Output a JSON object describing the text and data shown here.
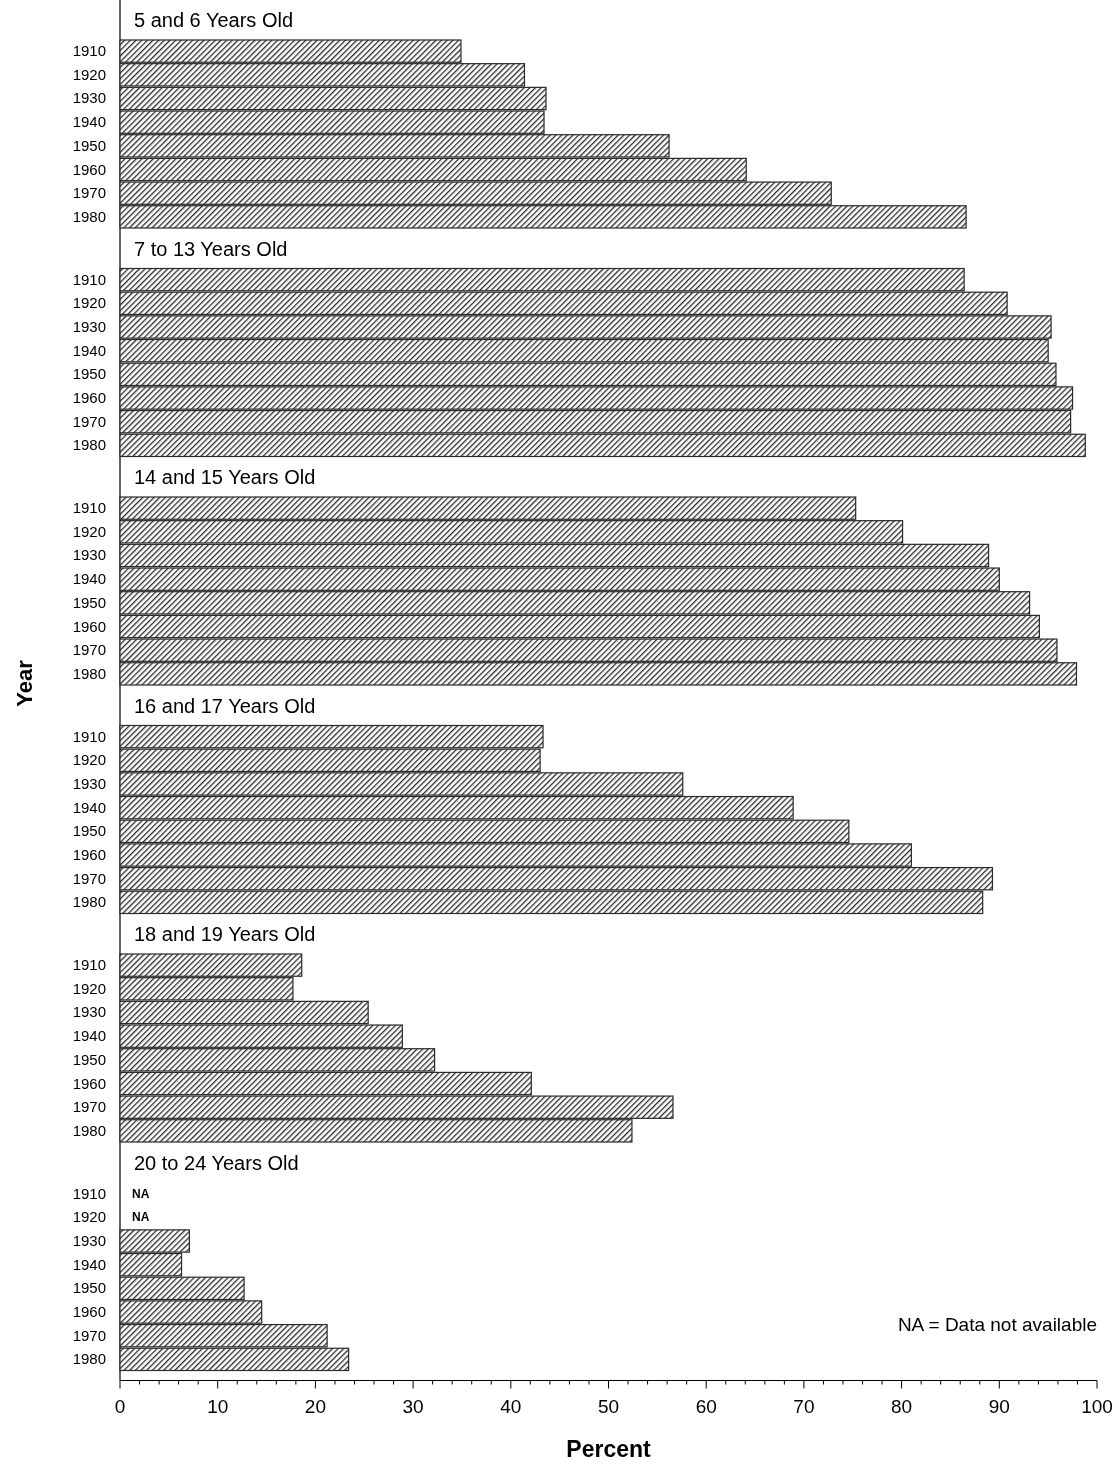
{
  "chart_data": [
    {
      "type": "bar",
      "orientation": "horizontal",
      "title": "5 and 6 Years Old",
      "categories": [
        "1910",
        "1920",
        "1930",
        "1940",
        "1950",
        "1960",
        "1970",
        "1980"
      ],
      "values": [
        34.9,
        41.4,
        43.6,
        43.4,
        56.2,
        64.1,
        72.8,
        86.6
      ],
      "color": "#2a2a2a",
      "xlim": [
        0,
        100
      ],
      "tick_labels": "y"
    },
    {
      "type": "bar",
      "orientation": "horizontal",
      "title": "7 to 13 Years Old",
      "categories": [
        "1910",
        "1920",
        "1930",
        "1940",
        "1950",
        "1960",
        "1970",
        "1980"
      ],
      "values": [
        86.4,
        90.8,
        95.3,
        95.0,
        95.8,
        97.5,
        97.3,
        98.8
      ],
      "color": "#2a2a2a",
      "xlim": [
        0,
        100
      ],
      "tick_labels": "y"
    },
    {
      "type": "bar",
      "orientation": "horizontal",
      "title": "14 and 15 Years Old",
      "categories": [
        "1910",
        "1920",
        "1930",
        "1940",
        "1950",
        "1960",
        "1970",
        "1980"
      ],
      "values": [
        75.3,
        80.1,
        88.9,
        90.0,
        93.1,
        94.1,
        95.9,
        97.9
      ],
      "color": "#2a2a2a",
      "xlim": [
        0,
        100
      ],
      "tick_labels": "y"
    },
    {
      "type": "bar",
      "orientation": "horizontal",
      "title": "16 and 17 Years Old",
      "ylabel": "Year",
      "categories": [
        "1910",
        "1920",
        "1930",
        "1940",
        "1950",
        "1960",
        "1970",
        "1980"
      ],
      "values": [
        43.3,
        43.0,
        57.6,
        68.9,
        74.6,
        81.0,
        89.3,
        88.3
      ],
      "color": "#2a2a2a",
      "xlim": [
        0,
        100
      ],
      "tick_labels": "y"
    },
    {
      "type": "bar",
      "orientation": "horizontal",
      "title": "18 and 19 Years Old",
      "categories": [
        "1910",
        "1920",
        "1930",
        "1940",
        "1950",
        "1960",
        "1970",
        "1980"
      ],
      "values": [
        18.6,
        17.7,
        25.4,
        28.9,
        32.2,
        42.1,
        56.6,
        52.4
      ],
      "color": "#2a2a2a",
      "xlim": [
        0,
        100
      ],
      "tick_labels": "y"
    },
    {
      "type": "bar",
      "orientation": "horizontal",
      "title": "20 to 24 Years Old",
      "xlabel": "Percent",
      "categories": [
        "1910",
        "1920",
        "1930",
        "1940",
        "1950",
        "1960",
        "1970",
        "1980"
      ],
      "values": [
        null,
        null,
        7.1,
        6.3,
        12.7,
        14.5,
        21.2,
        23.4
      ],
      "value_labels": [
        "NA",
        "NA",
        null,
        null,
        null,
        null,
        null,
        null
      ],
      "color": "#2a2a2a",
      "xlim": [
        0,
        100
      ],
      "xticks": [
        0,
        10,
        20,
        30,
        40,
        50,
        60,
        70,
        80,
        90,
        100
      ],
      "annotations": [
        "NA = Data not available"
      ]
    }
  ]
}
